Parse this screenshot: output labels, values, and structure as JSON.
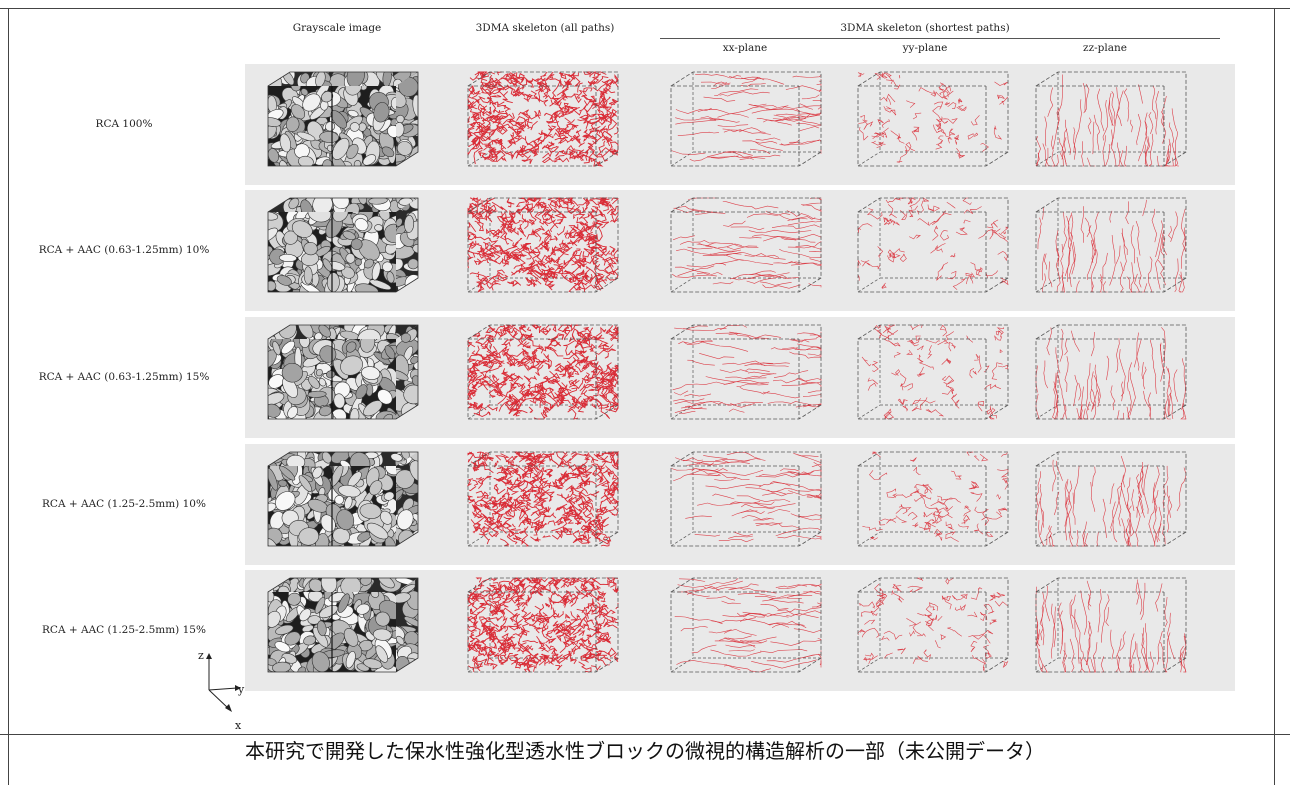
{
  "figure": {
    "column_headers": {
      "grayscale": "Grayscale image",
      "all_paths": "3DMA skeleton (all paths)",
      "shortest_paths": "3DMA skeleton (shortest paths)",
      "xx": "xx-plane",
      "yy": "yy-plane",
      "zz": "zz-plane"
    },
    "rows": [
      {
        "label": "RCA 100%"
      },
      {
        "label": "RCA + AAC (0.63-1.25mm) 10%"
      },
      {
        "label": "RCA + AAC (0.63-1.25mm) 15%"
      },
      {
        "label": "RCA + AAC (1.25-2.5mm) 10%"
      },
      {
        "label": "RCA + AAC (1.25-2.5mm) 15%"
      }
    ],
    "axes": {
      "z": "z",
      "y": "y",
      "x": "x"
    },
    "colors": {
      "skeleton": "#d9232e",
      "band": "#e9e9e9",
      "box_edge": "#555555"
    }
  },
  "caption": "本研究で開発した保水性強化型透水性ブロックの微視的構造解析の一部（未公開データ）"
}
